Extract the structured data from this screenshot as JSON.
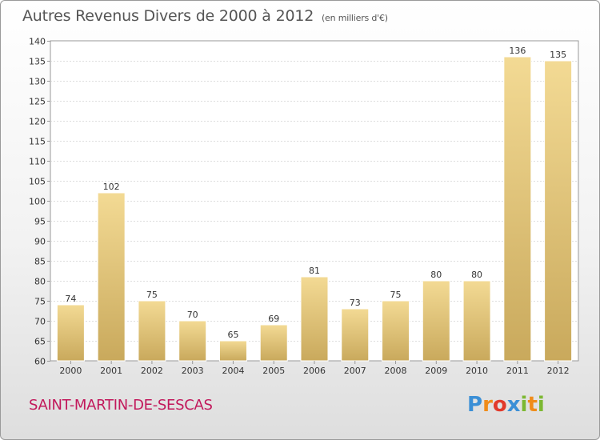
{
  "chart_data": {
    "type": "bar",
    "title": "Autres Revenus Divers de 2000 à 2012",
    "subtitle": "(en milliers d'€)",
    "xlabel": "",
    "ylabel": "",
    "categories": [
      "2000",
      "2001",
      "2002",
      "2003",
      "2004",
      "2005",
      "2006",
      "2007",
      "2008",
      "2009",
      "2010",
      "2011",
      "2012"
    ],
    "values": [
      74,
      102,
      75,
      70,
      65,
      69,
      81,
      73,
      75,
      80,
      80,
      136,
      135
    ],
    "ylim": [
      60,
      140
    ],
    "yticks": [
      60,
      65,
      70,
      75,
      80,
      85,
      90,
      95,
      100,
      105,
      110,
      115,
      120,
      125,
      130,
      135,
      140
    ],
    "grid": true,
    "bar_color": "#e8c97a"
  },
  "footer": {
    "commune": "SAINT-MARTIN-DE-SESCAS",
    "logo_letters": [
      "P",
      "r",
      "o",
      "x",
      "i",
      "t",
      "i"
    ],
    "logo_colors": [
      "#3b8fd6",
      "#f08c1a",
      "#e23a2b",
      "#3b8fd6",
      "#7cb832",
      "#f08c1a",
      "#7cb832"
    ]
  }
}
